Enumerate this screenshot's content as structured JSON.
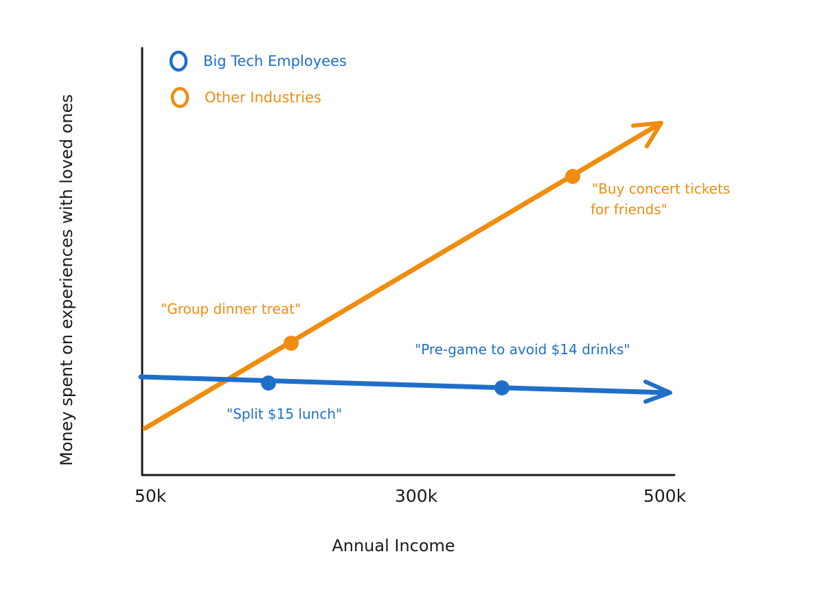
{
  "chart_data": {
    "type": "line",
    "title": "",
    "xlabel": "Annual Income",
    "ylabel": "Money spent on experiences with loved ones",
    "x_ticks": [
      "50k",
      "300k",
      "500k"
    ],
    "legend_placement": "top-left",
    "grid": false,
    "colors": {
      "big_tech": "#1f6fc9",
      "other": "#f08c0f",
      "axis": "#1a1a1a"
    },
    "series": [
      {
        "name": "Big Tech Employees",
        "key": "big_tech"
      },
      {
        "name": "Other Industries",
        "key": "other"
      }
    ],
    "annotations": [
      {
        "series": "other",
        "text": "\"Group dinner treat\""
      },
      {
        "series": "other",
        "text": "\"Buy concert tickets\nfor friends\""
      },
      {
        "series": "big_tech",
        "text": "\"Split $15 lunch\""
      },
      {
        "series": "big_tech",
        "text": "\"Pre-game to avoid $14 drinks\""
      }
    ]
  }
}
